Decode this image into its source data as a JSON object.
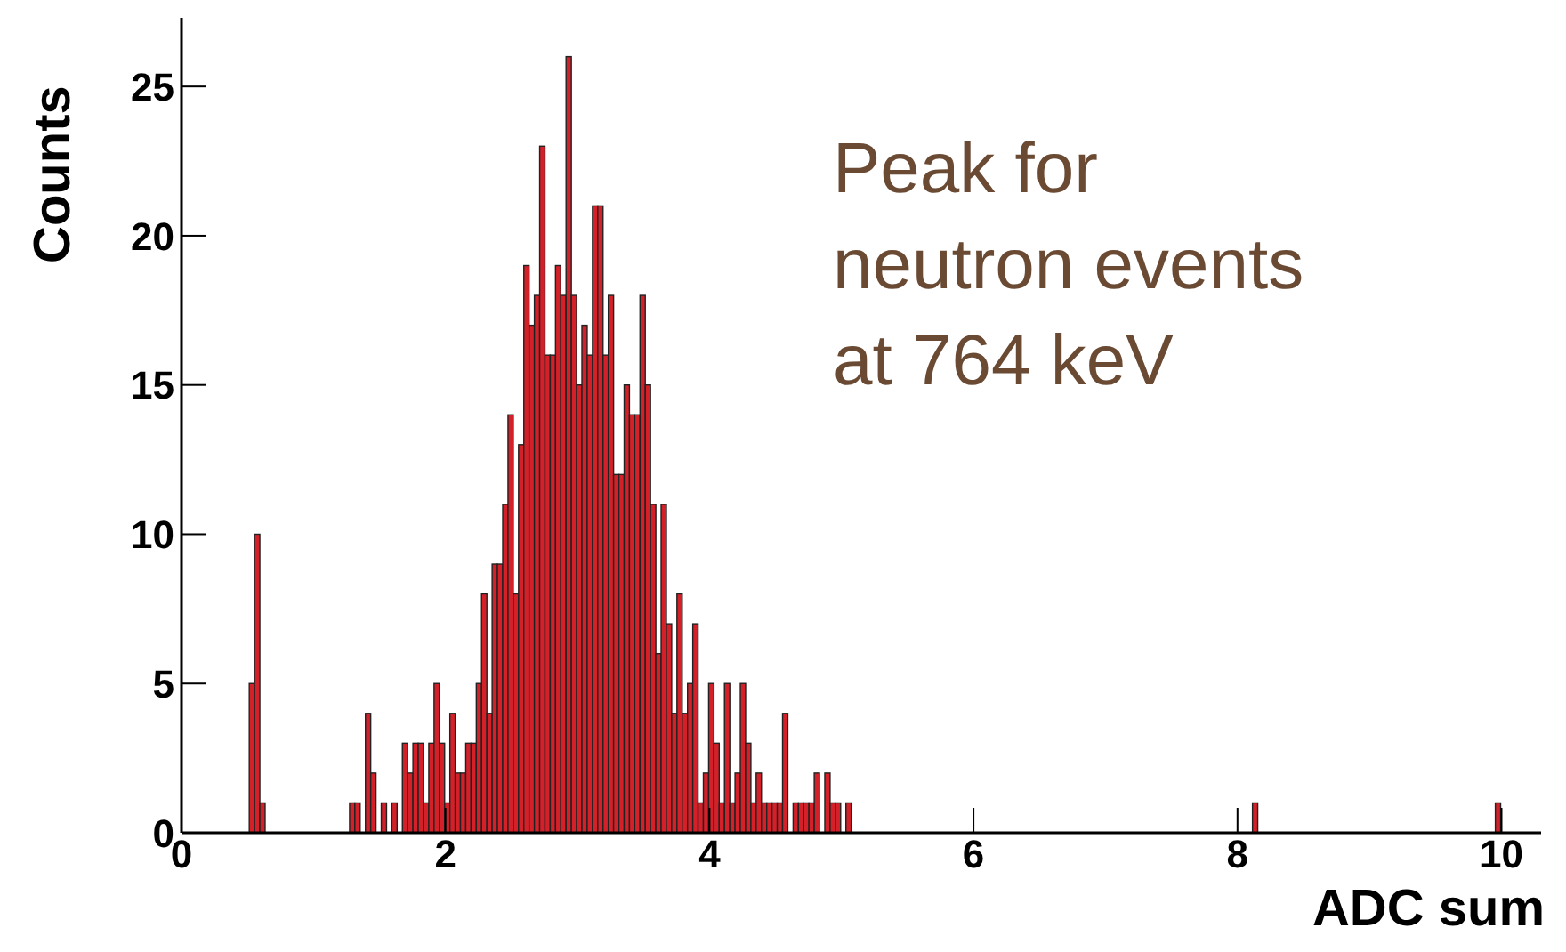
{
  "chart_data": {
    "type": "histogram",
    "xlabel": "ADC sum",
    "ylabel": "Counts",
    "annotations": [
      "Peak for\nneutron events\nat 764 keV"
    ],
    "color": "#d42029",
    "xlim": [
      0,
      10.3
    ],
    "xticks": [
      0,
      2,
      4,
      6,
      8,
      10
    ],
    "ylim": [
      0,
      27.3
    ],
    "yticks": [
      0,
      5,
      10,
      15,
      20,
      25
    ],
    "bins": [
      0,
      0.04,
      0.08,
      0.12,
      0.16,
      0.2,
      0.24,
      0.28,
      0.32,
      0.36,
      0.4,
      0.44,
      0.48,
      0.52,
      0.56,
      0.6,
      0.64,
      0.68,
      0.72,
      0.76,
      0.8,
      0.84,
      0.88,
      0.92,
      0.96,
      1,
      1.04,
      1.08,
      1.12,
      1.16,
      1.2,
      1.24,
      1.28,
      1.32,
      1.36,
      1.4,
      1.44,
      1.48,
      1.52,
      1.56,
      1.6,
      1.64,
      1.68,
      1.72,
      1.76,
      1.8,
      1.84,
      1.88,
      1.92,
      1.96,
      2,
      2.04,
      2.08,
      2.12,
      2.16,
      2.2,
      2.24,
      2.28,
      2.32,
      2.36,
      2.4,
      2.44,
      2.48,
      2.52,
      2.56,
      2.6,
      2.64,
      2.68,
      2.72,
      2.76,
      2.8,
      2.84,
      2.88,
      2.92,
      2.96,
      3,
      3.04,
      3.08,
      3.12,
      3.16,
      3.2,
      3.24,
      3.28,
      3.32,
      3.36,
      3.4,
      3.44,
      3.48,
      3.52,
      3.56,
      3.6,
      3.64,
      3.68,
      3.72,
      3.76,
      3.8,
      3.84,
      3.88,
      3.92,
      3.96,
      4,
      4.04,
      4.08,
      4.12,
      4.16,
      4.2,
      4.24,
      4.28,
      4.32,
      4.36,
      4.4,
      4.44,
      4.48,
      4.52,
      4.56,
      4.6,
      4.64,
      4.68,
      4.72,
      4.76,
      4.8,
      4.84,
      4.88,
      4.92,
      4.96,
      5,
      5.04,
      5.08,
      5.12,
      5.16,
      5.2,
      5.24,
      5.28,
      5.32,
      5.36,
      5.4,
      5.44,
      5.48,
      5.52,
      5.56,
      5.6,
      5.64,
      5.68,
      5.72,
      5.76,
      5.8,
      5.84,
      5.88,
      5.92,
      5.96,
      6,
      6.04,
      6.08,
      6.12,
      6.16,
      6.2,
      6.24,
      6.28,
      6.32,
      6.36,
      6.4,
      6.44,
      6.48,
      6.52,
      6.56,
      6.6,
      6.64,
      6.68,
      6.72,
      6.76,
      6.8,
      6.84,
      6.88,
      6.92,
      6.96,
      7,
      7.04,
      7.08,
      7.12,
      7.16,
      7.2,
      7.24,
      7.28,
      7.32,
      7.36,
      7.4,
      7.44,
      7.48,
      7.52,
      7.56,
      7.6,
      7.64,
      7.68,
      7.72,
      7.76,
      7.8,
      7.84,
      7.88,
      7.92,
      7.96,
      8,
      8.04,
      8.08,
      8.12,
      8.16,
      8.2,
      8.24,
      8.28,
      8.32,
      8.36,
      8.4,
      8.44,
      8.48,
      8.52,
      8.56,
      8.6,
      8.64,
      8.68,
      8.72,
      8.76,
      8.8,
      8.84,
      8.88,
      8.92,
      8.96,
      9,
      9.04,
      9.08,
      9.12,
      9.16,
      9.2,
      9.24,
      9.28,
      9.32,
      9.36,
      9.4,
      9.44,
      9.48,
      9.52,
      9.56,
      9.6,
      9.64,
      9.68,
      9.72,
      9.76,
      9.8,
      9.84,
      9.88,
      9.92,
      9.96,
      10
    ],
    "values": [
      0,
      0,
      0,
      0,
      0,
      0,
      0,
      0,
      0,
      0,
      0,
      0,
      0,
      5,
      10,
      1,
      0,
      0,
      0,
      0,
      0,
      0,
      0,
      0,
      0,
      0,
      0,
      0,
      0,
      0,
      0,
      0,
      1,
      1,
      0,
      4,
      2,
      0,
      1,
      0,
      1,
      0,
      3,
      2,
      3,
      3,
      1,
      3,
      5,
      3,
      1,
      4,
      2,
      2,
      3,
      3,
      5,
      8,
      4,
      9,
      9,
      11,
      14,
      8,
      13,
      19,
      17,
      18,
      23,
      16,
      16,
      19,
      18,
      26,
      18,
      15,
      17,
      16,
      21,
      21,
      16,
      18,
      12,
      12,
      15,
      14,
      14,
      18,
      15,
      11,
      6,
      11,
      7,
      4,
      8,
      4,
      5,
      7,
      1,
      2,
      5,
      3,
      1,
      5,
      1,
      2,
      5,
      3,
      1,
      2,
      1,
      1,
      1,
      1,
      4,
      0,
      1,
      1,
      1,
      1,
      2,
      0,
      2,
      1,
      1,
      0,
      1,
      0,
      0,
      0,
      0,
      0,
      0,
      0,
      0,
      0,
      0,
      0,
      0,
      0,
      0,
      0,
      0,
      0,
      0,
      0,
      0,
      0,
      0,
      0,
      0,
      0,
      0,
      0,
      0,
      0,
      0,
      0,
      0,
      0,
      0,
      0,
      0,
      0,
      0,
      0,
      0,
      0,
      0,
      0,
      0,
      0,
      0,
      0,
      0,
      0,
      0,
      0,
      0,
      0,
      0,
      0,
      0,
      0,
      0,
      0,
      0,
      0,
      0,
      0,
      0,
      0,
      0,
      0,
      0,
      0,
      0,
      0,
      0,
      0,
      0,
      0,
      0,
      1,
      0,
      0,
      0,
      0,
      0,
      0,
      0,
      0,
      0,
      0,
      0,
      0,
      0,
      0,
      0,
      0,
      0,
      0,
      0,
      0,
      0,
      0,
      0,
      0,
      0,
      0,
      0,
      0,
      0,
      0,
      0,
      0,
      0,
      0,
      0,
      0,
      0,
      0,
      0,
      0,
      0,
      0,
      0,
      0,
      0,
      1
    ]
  }
}
